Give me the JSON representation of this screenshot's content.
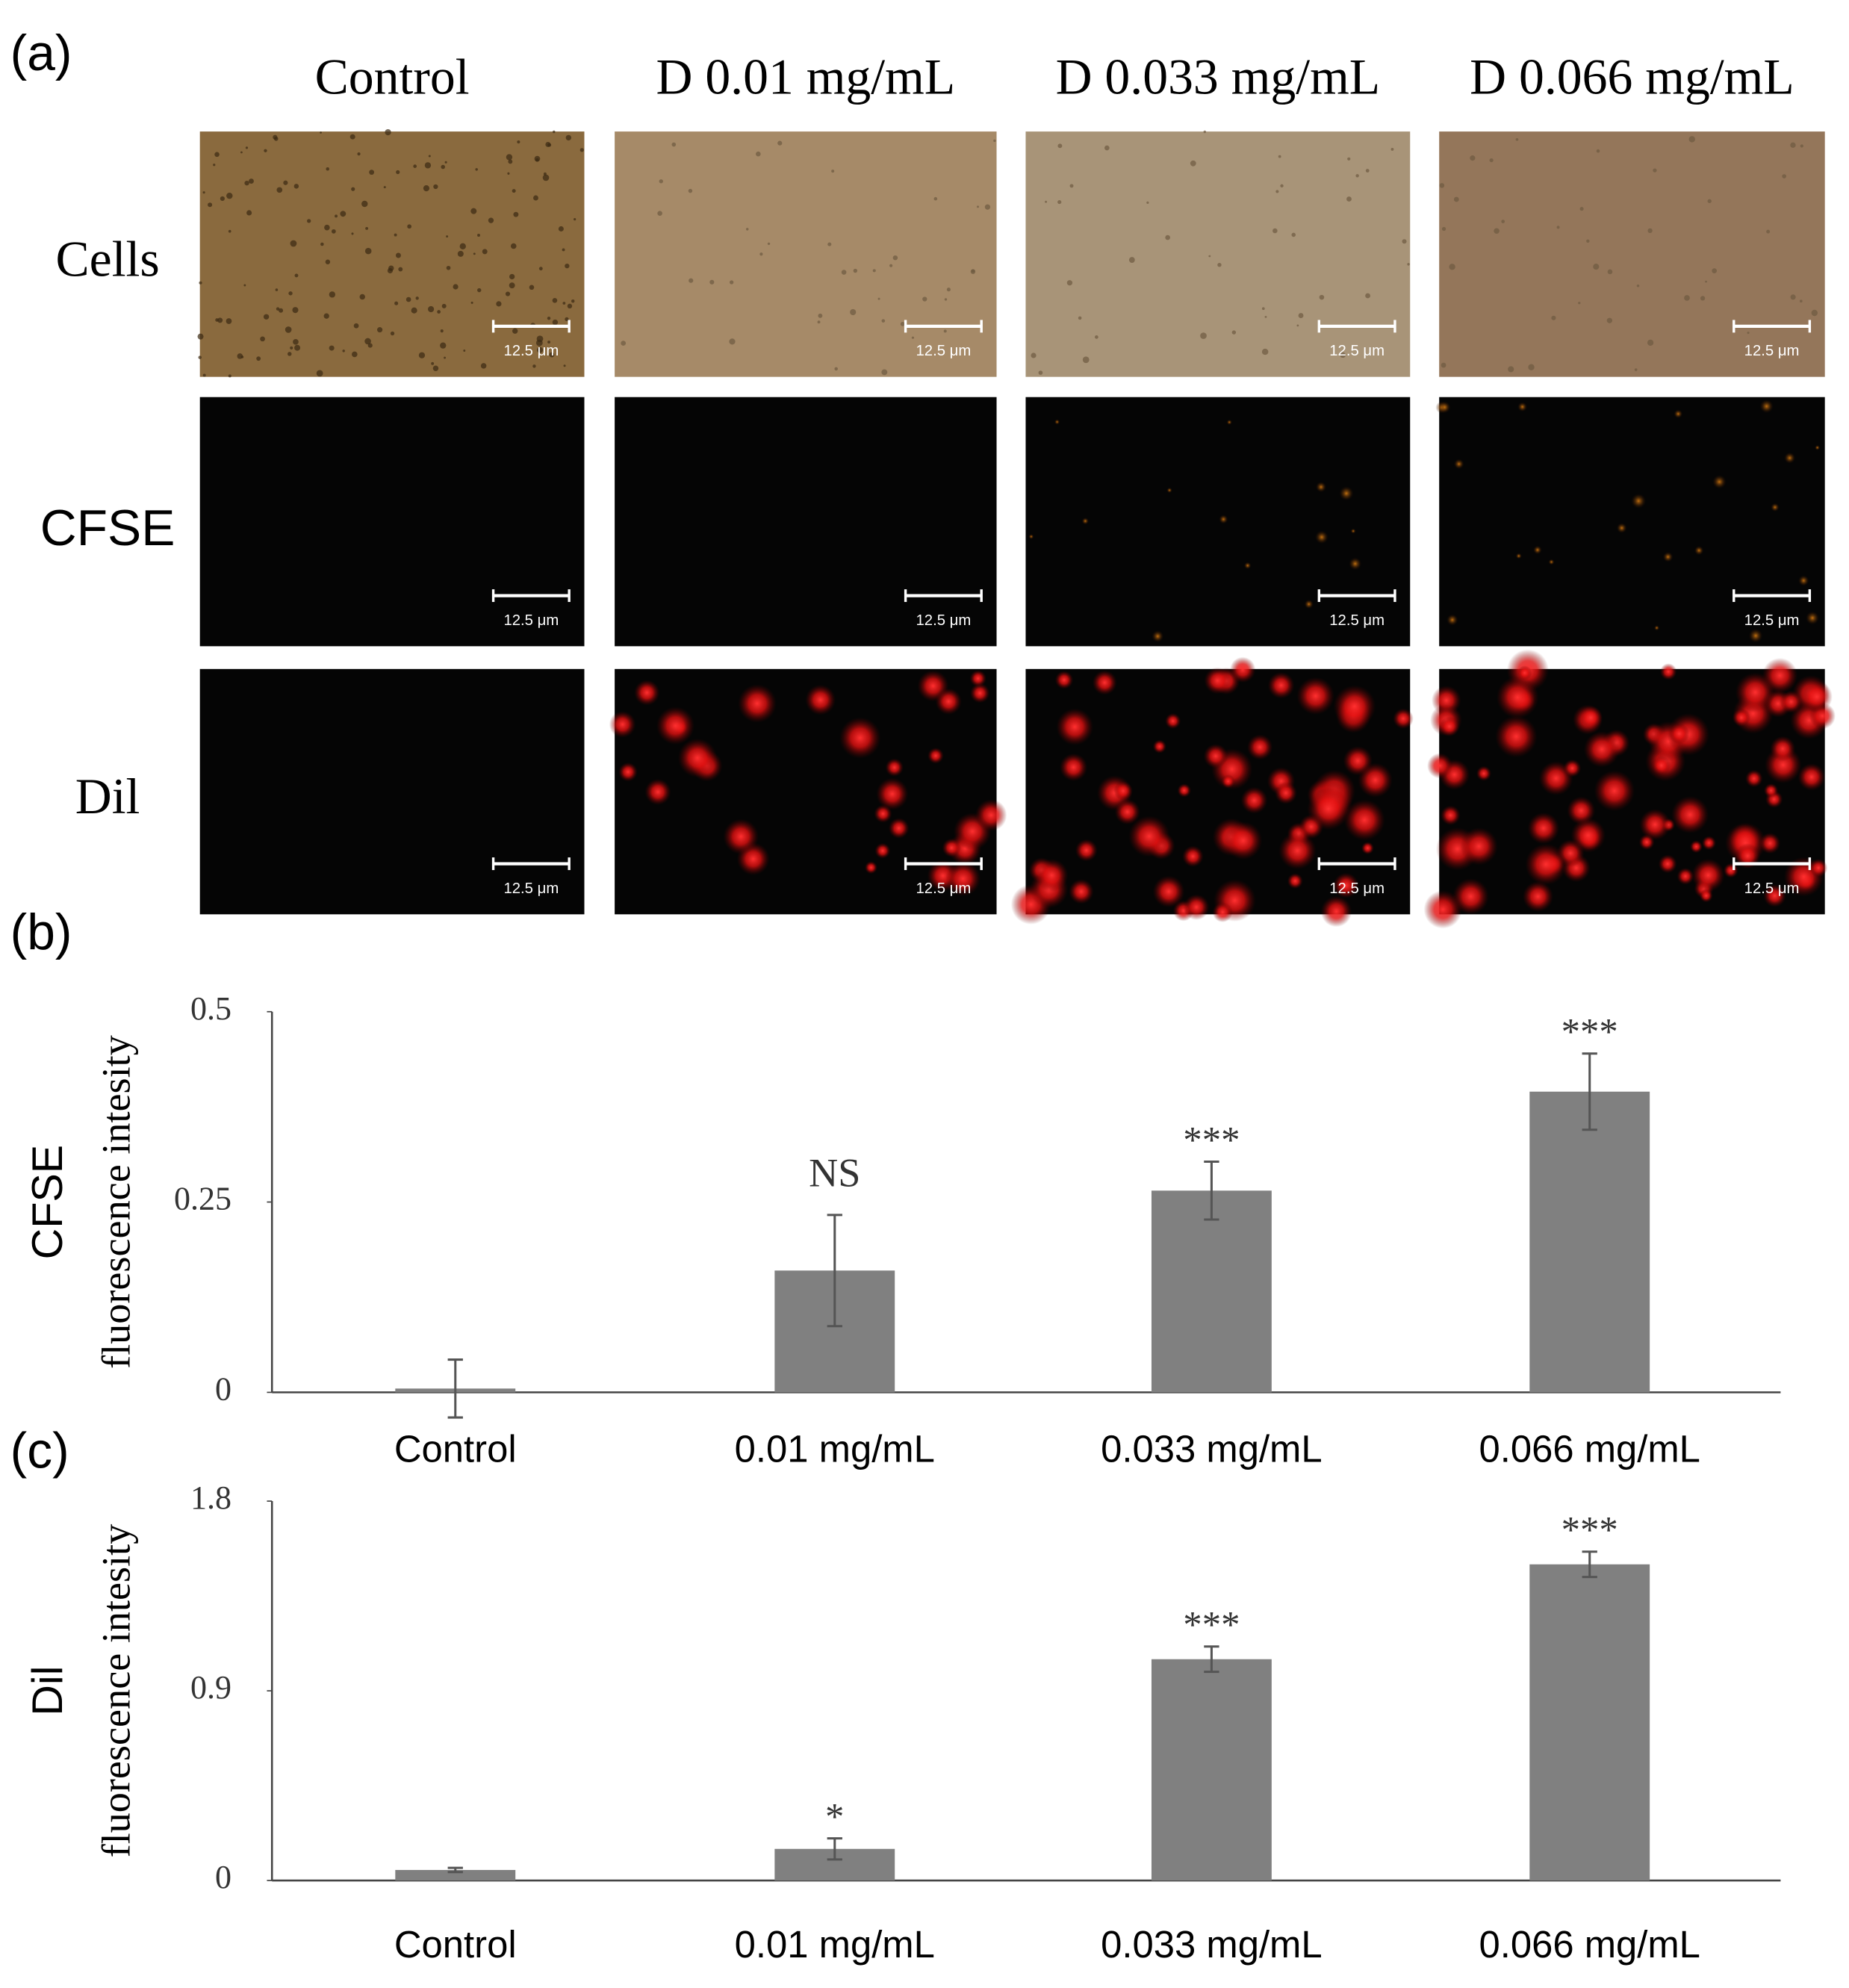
{
  "panel_labels": [
    "(a)",
    "(b)",
    "(c)"
  ],
  "micrographs": {
    "column_headers": [
      "Control",
      "D 0.01 mg/mL",
      "D 0.033 mg/mL",
      "D 0.066 mg/mL"
    ],
    "row_labels": [
      "Cells",
      "CFSE",
      "Dil"
    ],
    "scale_bar_label": "12.5 μm"
  },
  "chart_data": [
    {
      "type": "bar",
      "ylabel_lines": [
        "CFSE",
        "fluorescence intesity"
      ],
      "categories": [
        "Control",
        "0.01 mg/mL",
        "0.033 mg/mL",
        "0.066 mg/mL"
      ],
      "values": [
        0.005,
        0.16,
        0.265,
        0.395
      ],
      "errors": [
        0.038,
        0.073,
        0.038,
        0.05
      ],
      "annotations": [
        null,
        "NS",
        "***",
        "***"
      ],
      "color": "#808080",
      "error_color": "#555555",
      "ylim": [
        0,
        0.5
      ],
      "yticks": [
        0,
        0.25,
        0.5
      ]
    },
    {
      "type": "bar",
      "ylabel_lines": [
        "Dil",
        "fluorescence intesity"
      ],
      "categories": [
        "Control",
        "0.01 mg/mL",
        "0.033 mg/mL",
        "0.066 mg/mL"
      ],
      "values": [
        0.05,
        0.15,
        1.05,
        1.5
      ],
      "errors": [
        0.01,
        0.05,
        0.06,
        0.06
      ],
      "annotations": [
        null,
        "*",
        "***",
        "***"
      ],
      "color": "#808080",
      "error_color": "#555555",
      "ylim": [
        0,
        1.8
      ],
      "yticks": [
        0,
        0.9,
        1.8
      ]
    }
  ]
}
